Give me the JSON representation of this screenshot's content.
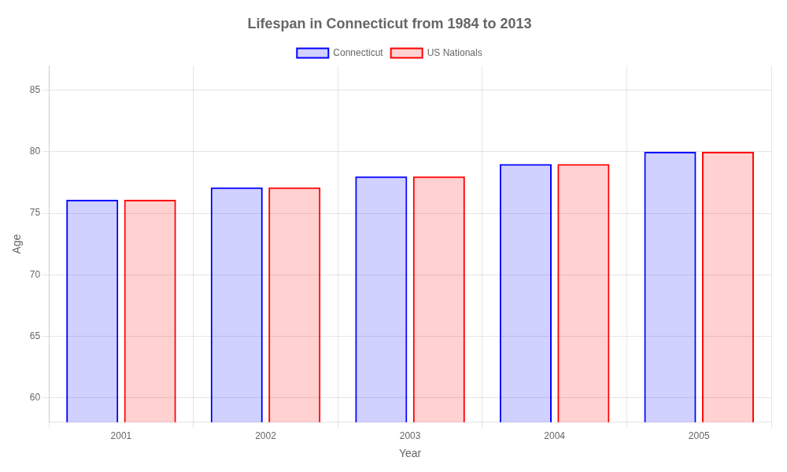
{
  "chart_data": {
    "type": "bar",
    "title": "Lifespan in Connecticut from 1984 to 2013",
    "xlabel": "Year",
    "ylabel": "Age",
    "categories": [
      "2001",
      "2002",
      "2003",
      "2004",
      "2005"
    ],
    "series": [
      {
        "name": "Connecticut",
        "color": "#0000ff",
        "values": [
          76.1,
          77.1,
          78.0,
          79.0,
          80.0
        ]
      },
      {
        "name": "US Nationals",
        "color": "#ff0000",
        "values": [
          76.1,
          77.1,
          78.0,
          79.0,
          80.0
        ]
      }
    ],
    "ylim": [
      58,
      87
    ],
    "yticks": [
      60,
      65,
      70,
      75,
      80,
      85
    ],
    "grid": true,
    "legend": "top"
  }
}
